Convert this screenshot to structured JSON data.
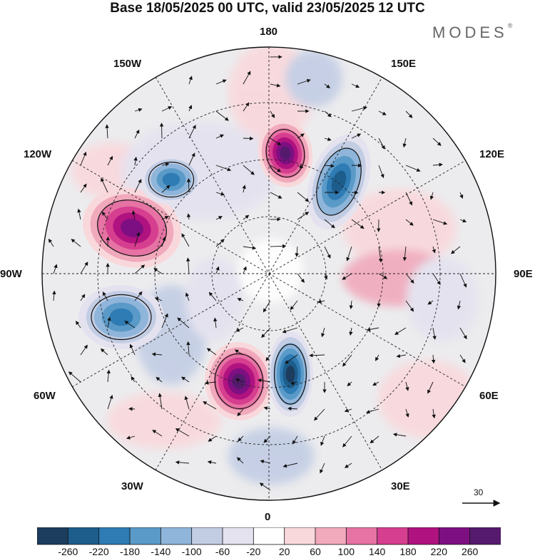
{
  "header": {
    "title": "Base 18/05/2025 00 UTC, valid 23/05/2025 12 UTC",
    "brand": "MODES",
    "brand_mark": "®"
  },
  "map": {
    "projection": "north polar stereographic",
    "longitude_labels": {
      "top": "180",
      "bottom": "0",
      "left": "90W",
      "right": "90E",
      "upper_left_1": "150W",
      "upper_left_2": "120W",
      "lower_left_1": "60W",
      "lower_left_2": "30W",
      "upper_right_1": "150E",
      "upper_right_2": "120E",
      "lower_right_1": "60E",
      "lower_right_2": "30E"
    },
    "anomaly_centers": [
      {
        "sign": "positive",
        "lon_label": "near 180",
        "level": 260
      },
      {
        "sign": "positive",
        "lon_label": "near 110W",
        "level": 220
      },
      {
        "sign": "positive",
        "lon_label": "near 20W",
        "level": 260
      },
      {
        "sign": "negative",
        "lon_label": "near 150E",
        "level": -220
      },
      {
        "sign": "negative",
        "lon_label": "near 5E",
        "level": -260
      },
      {
        "sign": "negative",
        "lon_label": "near 70W",
        "level": -180
      },
      {
        "sign": "negative",
        "lon_label": "near 130W",
        "level": -180
      }
    ],
    "reference_vector": {
      "value": "30"
    }
  },
  "colorbar": {
    "ticks": [
      "-260",
      "-220",
      "-180",
      "-140",
      "-100",
      "-60",
      "-20",
      "20",
      "60",
      "100",
      "140",
      "180",
      "220",
      "260"
    ],
    "colors": [
      "#1c3d5e",
      "#1d5d8c",
      "#2f7bb3",
      "#5a9ac8",
      "#8fb5da",
      "#c2cde4",
      "#e4e2ef",
      "#ffffff",
      "#f9d8dc",
      "#f1a9bc",
      "#e673a3",
      "#d63e8f",
      "#b0127f",
      "#7e0f82",
      "#551a6e"
    ]
  }
}
